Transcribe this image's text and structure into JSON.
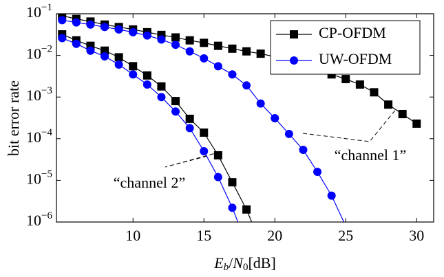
{
  "chart_data": {
    "type": "line",
    "xlabel": "Eb/N0[dB]",
    "ylabel": "bit error rate",
    "log_y": true,
    "legend": "upper right",
    "xlim": [
      4.6,
      31.2
    ],
    "ylim": [
      1e-06,
      0.1
    ],
    "xticks": [
      10,
      15,
      20,
      25,
      30
    ],
    "yticks": [
      {
        "value": 0.1,
        "label": "10−1"
      },
      {
        "value": 0.01,
        "label": "10−2"
      },
      {
        "value": 0.001,
        "label": "10−3"
      },
      {
        "value": 0.0001,
        "label": "10−4"
      },
      {
        "value": 1e-05,
        "label": "10−5"
      },
      {
        "value": 1e-06,
        "label": "10−6"
      }
    ],
    "annotations": [
      "“channel 1”",
      "“channel 2”"
    ],
    "series": [
      {
        "name": "CP-OFDM",
        "color": "#000000",
        "marker": "square",
        "x": [
          5,
          6,
          7,
          8,
          9,
          10,
          11,
          12,
          13,
          14,
          15,
          16,
          17,
          18,
          19,
          20,
          21,
          22,
          23,
          24,
          25,
          26,
          27,
          28,
          29,
          30
        ],
        "values": [
          0.09,
          0.075,
          0.065,
          0.055,
          0.048,
          0.042,
          0.036,
          0.031,
          0.027,
          0.023,
          0.02,
          0.017,
          0.0145,
          0.0125,
          0.011,
          0.0093,
          0.0075,
          0.006,
          0.0045,
          0.0035,
          0.0027,
          0.002,
          0.0013,
          0.00066,
          0.00039,
          0.00023
        ]
      },
      {
        "name": "UW-OFDM",
        "color": "#0000ff",
        "marker": "circle",
        "x": [
          5,
          6,
          7,
          8,
          9,
          10,
          11,
          12,
          13,
          14,
          15,
          16,
          17,
          18,
          19,
          20,
          21,
          22,
          23,
          24,
          25
        ],
        "values": [
          0.07,
          0.062,
          0.055,
          0.048,
          0.042,
          0.036,
          0.03,
          0.024,
          0.018,
          0.0125,
          0.0085,
          0.0055,
          0.0035,
          0.0019,
          0.0007,
          0.00031,
          0.00013,
          5.4e-05,
          1.6e-05,
          4.3e-06,
          8e-07
        ]
      },
      {
        "name": null,
        "color": "#000000",
        "marker": "square",
        "x": [
          5,
          6,
          7,
          8,
          9,
          10,
          11,
          12,
          13,
          14,
          15,
          16,
          17,
          18,
          19
        ],
        "values": [
          0.032,
          0.023,
          0.017,
          0.013,
          0.009,
          0.0055,
          0.0033,
          0.0018,
          0.0008,
          0.0003,
          0.00014,
          4e-05,
          9e-06,
          2e-06,
          3e-07
        ]
      },
      {
        "name": null,
        "color": "#0000ff",
        "marker": "circle",
        "x": [
          5,
          6,
          7,
          8,
          9,
          10,
          11,
          12,
          13,
          14,
          15,
          16,
          17,
          18
        ],
        "values": [
          0.026,
          0.019,
          0.013,
          0.0095,
          0.006,
          0.0035,
          0.002,
          0.001,
          0.00045,
          0.00018,
          5e-05,
          1.2e-05,
          2.2e-06,
          3e-07
        ]
      }
    ]
  }
}
